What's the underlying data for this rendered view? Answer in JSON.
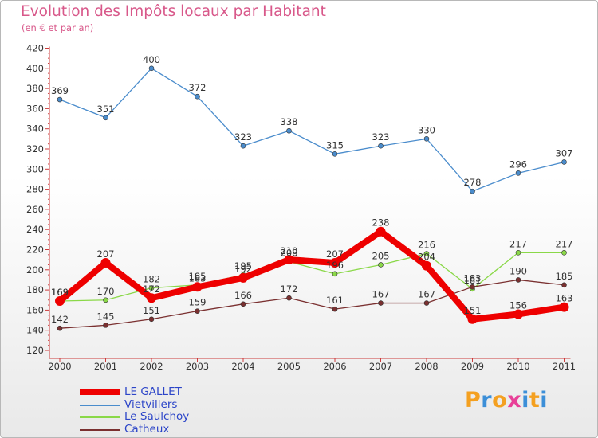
{
  "header": {
    "title": "Evolution des Impôts locaux par Habitant",
    "subtitle": "(en € et par an)"
  },
  "chart_data": {
    "type": "line",
    "title": "Evolution des Impôts locaux par Habitant",
    "subtitle": "(en € et par an)",
    "xlabel": "",
    "ylabel": "",
    "categories": [
      "2000",
      "2001",
      "2002",
      "2003",
      "2004",
      "2005",
      "2006",
      "2007",
      "2008",
      "2009",
      "2010",
      "2011"
    ],
    "ylim": [
      120,
      420
    ],
    "yticks": [
      120,
      140,
      160,
      180,
      200,
      220,
      240,
      260,
      280,
      300,
      320,
      340,
      360,
      380,
      400,
      420
    ],
    "grid": false,
    "legend_position": "bottom-left",
    "series": [
      {
        "name": "Vietvillers",
        "color": "#4a8ccc",
        "values": [
          369,
          351,
          400,
          372,
          323,
          338,
          315,
          323,
          330,
          278,
          296,
          307
        ]
      },
      {
        "name": "Le Saulchoy",
        "color": "#8ad848",
        "values": [
          169,
          170,
          182,
          185,
          195,
          208,
          196,
          205,
          216,
          181,
          217,
          217
        ]
      },
      {
        "name": "Catheux",
        "color": "#7a3030",
        "values": [
          142,
          145,
          151,
          159,
          166,
          172,
          161,
          167,
          167,
          183,
          190,
          185
        ]
      },
      {
        "name": "LE GALLET",
        "color": "#ee0000",
        "values": [
          169,
          207,
          172,
          183,
          192,
          210,
          207,
          238,
          204,
          151,
          156,
          163
        ]
      }
    ]
  },
  "legend": {
    "items": [
      {
        "label": "LE GALLET",
        "color": "#ee0000"
      },
      {
        "label": "Vietvillers",
        "color": "#4a8ccc"
      },
      {
        "label": "Le Saulchoy",
        "color": "#8ad848"
      },
      {
        "label": "Catheux",
        "color": "#7a3030"
      }
    ]
  },
  "brand": {
    "text": "Proxiti",
    "colors": [
      "#f4a020",
      "#3c8fd8",
      "#f4a020",
      "#e84098",
      "#3c8fd8",
      "#f4a020",
      "#3c8fd8"
    ]
  }
}
